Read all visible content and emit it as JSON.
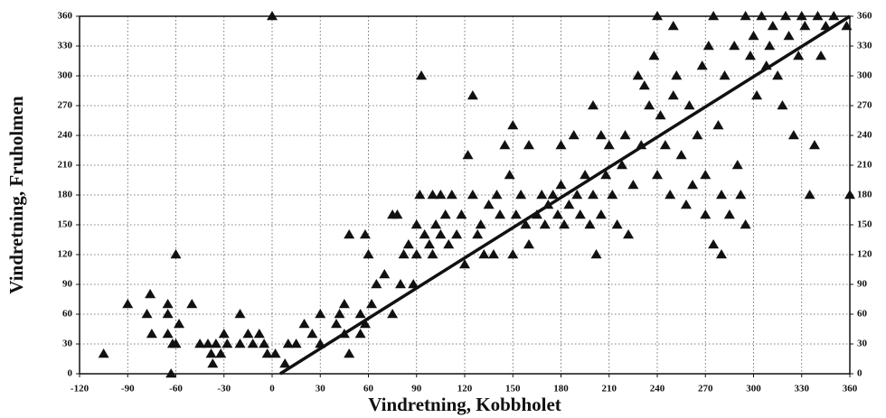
{
  "chart_data": {
    "type": "scatter",
    "x_label": "Vindretning, Kobbholet",
    "y_label": "Vindretning, Fruholmen",
    "xlim": [
      -120,
      360
    ],
    "ylim": [
      0,
      360
    ],
    "xticks": [
      -120,
      -90,
      -60,
      -30,
      0,
      30,
      60,
      90,
      120,
      150,
      180,
      210,
      240,
      270,
      300,
      330,
      360
    ],
    "yticks": [
      0,
      30,
      60,
      90,
      120,
      150,
      180,
      210,
      240,
      270,
      300,
      330,
      360
    ],
    "grid": true,
    "right_axis_labels": true,
    "x": [
      -105,
      -90,
      -78,
      -76,
      -75,
      -65,
      -65,
      -65,
      -63,
      -62,
      -60,
      -60,
      -58,
      -50,
      -45,
      -40,
      -38,
      -37,
      -35,
      -32,
      -30,
      -28,
      -20,
      -20,
      -15,
      -12,
      -8,
      -5,
      -3,
      0,
      2,
      8,
      10,
      15,
      20,
      25,
      30,
      30,
      40,
      42,
      45,
      45,
      48,
      48,
      55,
      55,
      58,
      58,
      60,
      62,
      65,
      70,
      75,
      75,
      78,
      80,
      82,
      85,
      88,
      90,
      90,
      92,
      93,
      95,
      98,
      100,
      100,
      102,
      105,
      105,
      108,
      110,
      112,
      115,
      118,
      120,
      122,
      125,
      125,
      128,
      130,
      132,
      135,
      138,
      140,
      142,
      145,
      148,
      150,
      150,
      152,
      155,
      158,
      160,
      160,
      165,
      168,
      170,
      172,
      175,
      178,
      180,
      180,
      182,
      185,
      188,
      190,
      192,
      195,
      198,
      200,
      200,
      202,
      205,
      205,
      208,
      210,
      212,
      215,
      218,
      220,
      222,
      225,
      228,
      230,
      232,
      235,
      238,
      240,
      240,
      242,
      245,
      248,
      250,
      250,
      252,
      255,
      258,
      260,
      262,
      265,
      268,
      270,
      270,
      272,
      275,
      275,
      278,
      280,
      280,
      282,
      285,
      288,
      290,
      292,
      295,
      295,
      298,
      300,
      302,
      305,
      308,
      310,
      312,
      315,
      318,
      320,
      322,
      325,
      328,
      330,
      332,
      335,
      338,
      340,
      342,
      345,
      350,
      358,
      360
    ],
    "series": [
      {
        "color": "#111111",
        "values": [
          20,
          70,
          60,
          80,
          40,
          70,
          60,
          40,
          0,
          30,
          30,
          120,
          50,
          70,
          30,
          30,
          20,
          10,
          30,
          20,
          40,
          30,
          60,
          30,
          40,
          30,
          40,
          30,
          20,
          360,
          20,
          10,
          30,
          30,
          50,
          40,
          60,
          30,
          50,
          60,
          70,
          40,
          20,
          140,
          60,
          40,
          140,
          50,
          120,
          70,
          90,
          100,
          60,
          160,
          160,
          90,
          120,
          130,
          90,
          150,
          120,
          180,
          300,
          140,
          130,
          180,
          120,
          150,
          180,
          140,
          160,
          130,
          180,
          140,
          160,
          110,
          220,
          280,
          180,
          140,
          150,
          120,
          170,
          120,
          180,
          160,
          230,
          200,
          250,
          120,
          160,
          180,
          150,
          230,
          130,
          160,
          180,
          150,
          170,
          180,
          160,
          230,
          190,
          150,
          170,
          240,
          180,
          160,
          200,
          150,
          270,
          180,
          120,
          240,
          160,
          200,
          230,
          180,
          150,
          210,
          240,
          140,
          190,
          300,
          230,
          290,
          270,
          320,
          360,
          200,
          260,
          230,
          180,
          350,
          280,
          300,
          220,
          170,
          270,
          190,
          240,
          310,
          160,
          200,
          330,
          130,
          360,
          250,
          120,
          180,
          300,
          160,
          330,
          210,
          180,
          360,
          150,
          320,
          340,
          280,
          360,
          310,
          330,
          350,
          300,
          270,
          360,
          340,
          240,
          320,
          360,
          350,
          180,
          230,
          360,
          320,
          350,
          360,
          350,
          180
        ]
      }
    ],
    "fit_line": {
      "x": [
        5,
        360
      ],
      "y": [
        0,
        360
      ]
    }
  }
}
